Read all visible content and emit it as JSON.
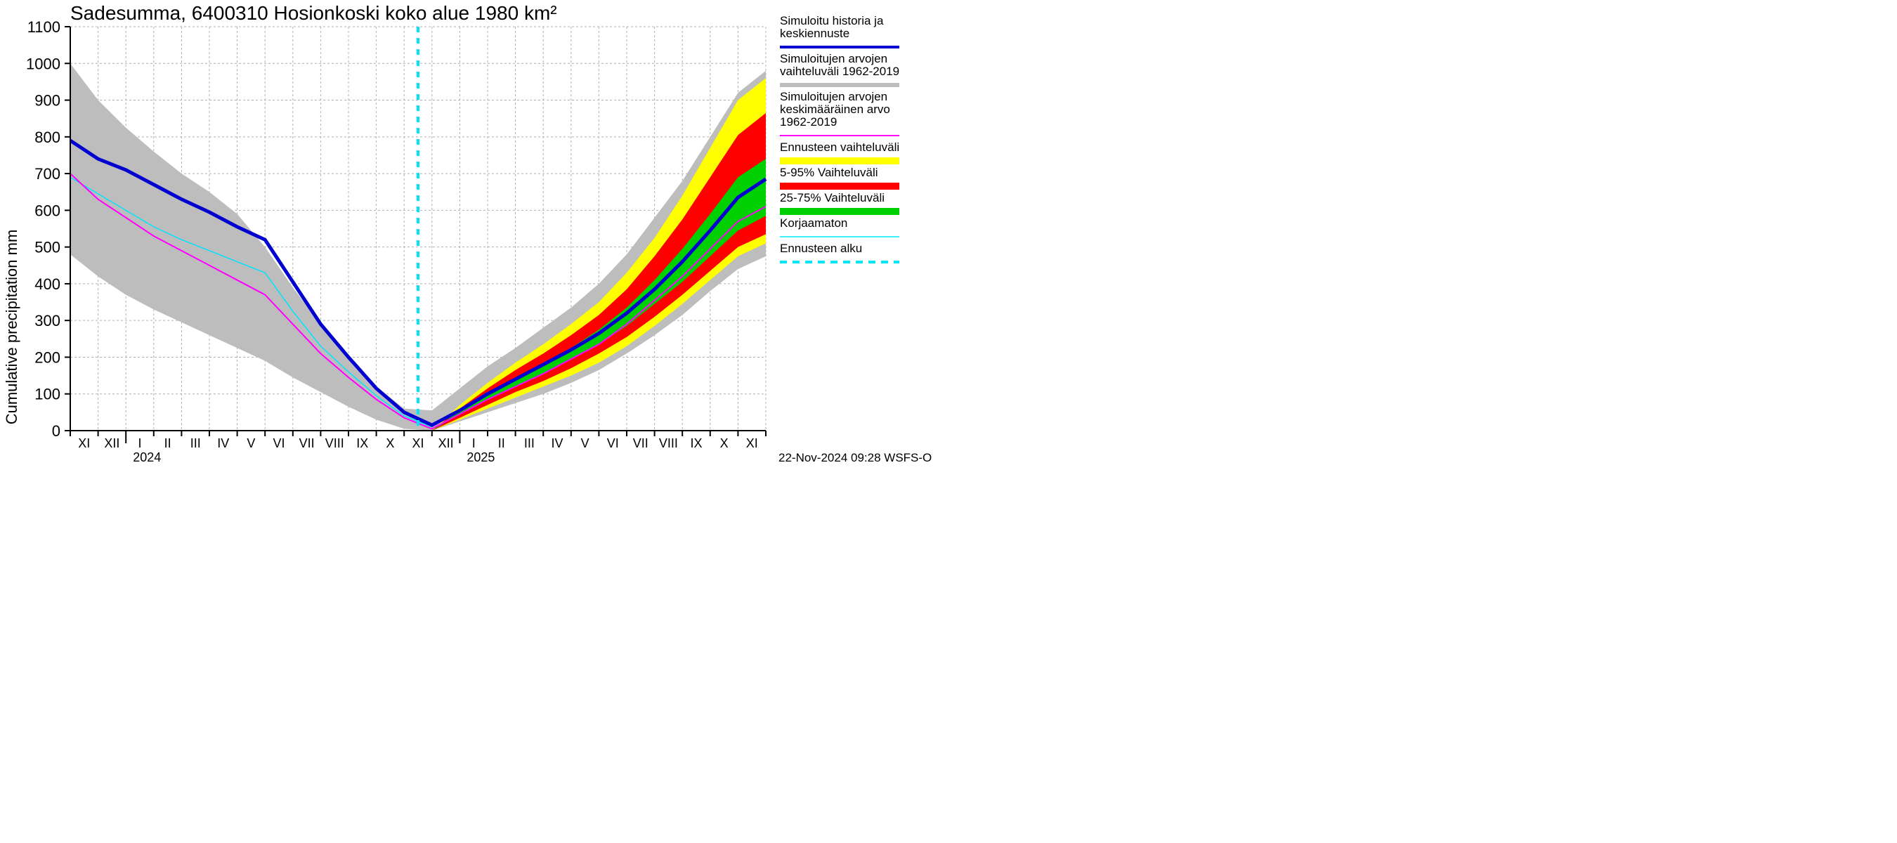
{
  "chart": {
    "type": "line-area",
    "title": "Sadesumma, 6400310 Hosionkoski koko alue 1980 km²",
    "ylabel": "Cumulative precipitation   mm",
    "footer": "22-Nov-2024 09:28 WSFS-O",
    "background_color": "#ffffff",
    "grid_color": "#b0b0b0",
    "axis_color": "#000000",
    "ylim": [
      0,
      1100
    ],
    "ytick_step": 100,
    "yticks": [
      0,
      100,
      200,
      300,
      400,
      500,
      600,
      700,
      800,
      900,
      1000,
      1100
    ],
    "x_months": [
      "XI",
      "XII",
      "I",
      "II",
      "III",
      "IV",
      "V",
      "VI",
      "VII",
      "VIII",
      "IX",
      "X",
      "XI",
      "XII",
      "I",
      "II",
      "III",
      "IV",
      "V",
      "VI",
      "VII",
      "VIII",
      "IX",
      "X",
      "XI"
    ],
    "x_year_labels": [
      {
        "label": "2024",
        "at_index": 2
      },
      {
        "label": "2025",
        "at_index": 14
      }
    ],
    "forecast_start_index": 12.5,
    "legend_items": [
      {
        "label_lines": [
          "Simuloitu historia ja",
          "keskiennuste"
        ],
        "type": "line",
        "color": "#0000d0",
        "width": 4
      },
      {
        "label_lines": [
          "Simuloitujen arvojen",
          "vaihteluväli 1962-2019"
        ],
        "type": "line",
        "color": "#bdbdbd",
        "width": 6
      },
      {
        "label_lines": [
          "Simuloitujen arvojen",
          "keskimääräinen arvo",
          " 1962-2019"
        ],
        "type": "line",
        "color": "#ff00ff",
        "width": 2
      },
      {
        "label_lines": [
          "Ennusteen vaihteluväli"
        ],
        "type": "line",
        "color": "#ffff00",
        "width": 10
      },
      {
        "label_lines": [
          "5-95% Vaihteluväli"
        ],
        "type": "line",
        "color": "#ff0000",
        "width": 10
      },
      {
        "label_lines": [
          "25-75% Vaihteluväli"
        ],
        "type": "line",
        "color": "#00d000",
        "width": 10
      },
      {
        "label_lines": [
          "Korjaamaton"
        ],
        "type": "line",
        "color": "#00e5ff",
        "width": 1.5
      },
      {
        "label_lines": [
          "Ennusteen alku"
        ],
        "type": "dashed",
        "color": "#00e5ff",
        "width": 4
      }
    ],
    "colors": {
      "hist_band": "#bdbdbd",
      "yellow_band": "#ffff00",
      "red_band": "#ff0000",
      "green_band": "#00d000",
      "blue_line": "#0000d0",
      "magenta_line": "#ff00ff",
      "cyan_line": "#00e5ff",
      "forecast_dash": "#00e5ff"
    },
    "series": {
      "hist_band_upper": [
        1000,
        900,
        825,
        760,
        700,
        650,
        590,
        500,
        390,
        290,
        200,
        120,
        60,
        55,
        115,
        175,
        225,
        280,
        335,
        400,
        480,
        580,
        680,
        800,
        920,
        980
      ],
      "hist_band_lower": [
        480,
        420,
        370,
        330,
        295,
        260,
        225,
        190,
        145,
        105,
        65,
        30,
        5,
        0,
        25,
        50,
        75,
        100,
        130,
        165,
        210,
        260,
        315,
        380,
        440,
        475
      ],
      "yellow_upper": [
        null,
        null,
        null,
        null,
        null,
        null,
        null,
        null,
        null,
        null,
        null,
        null,
        null,
        0,
        70,
        130,
        185,
        235,
        290,
        350,
        430,
        525,
        640,
        770,
        900,
        960
      ],
      "yellow_lower": [
        null,
        null,
        null,
        null,
        null,
        null,
        null,
        null,
        null,
        null,
        null,
        null,
        null,
        0,
        30,
        60,
        90,
        120,
        150,
        185,
        230,
        285,
        345,
        410,
        475,
        510
      ],
      "red_upper": [
        null,
        null,
        null,
        null,
        null,
        null,
        null,
        null,
        null,
        null,
        null,
        null,
        null,
        0,
        60,
        115,
        165,
        210,
        260,
        315,
        385,
        475,
        575,
        690,
        805,
        865
      ],
      "red_lower": [
        null,
        null,
        null,
        null,
        null,
        null,
        null,
        null,
        null,
        null,
        null,
        null,
        null,
        0,
        35,
        70,
        105,
        135,
        170,
        210,
        255,
        310,
        370,
        435,
        500,
        535
      ],
      "green_upper": [
        null,
        null,
        null,
        null,
        null,
        null,
        null,
        null,
        null,
        null,
        null,
        null,
        null,
        0,
        55,
        100,
        145,
        185,
        225,
        275,
        335,
        410,
        495,
        590,
        690,
        740
      ],
      "green_lower": [
        null,
        null,
        null,
        null,
        null,
        null,
        null,
        null,
        null,
        null,
        null,
        null,
        null,
        0,
        45,
        85,
        120,
        155,
        195,
        235,
        285,
        345,
        405,
        475,
        545,
        585
      ],
      "blue": [
        790,
        740,
        710,
        670,
        630,
        595,
        555,
        520,
        405,
        290,
        200,
        115,
        50,
        15,
        55,
        100,
        140,
        180,
        220,
        265,
        320,
        385,
        460,
        545,
        635,
        685
      ],
      "magenta": [
        700,
        630,
        580,
        530,
        490,
        450,
        410,
        370,
        290,
        210,
        145,
        85,
        35,
        5,
        45,
        85,
        120,
        155,
        195,
        235,
        290,
        355,
        420,
        495,
        570,
        610
      ],
      "cyan": [
        690,
        645,
        600,
        555,
        520,
        490,
        460,
        430,
        325,
        230,
        160,
        95,
        40,
        10,
        null,
        null,
        null,
        null,
        null,
        null,
        null,
        null,
        null,
        null,
        null,
        null
      ]
    }
  }
}
